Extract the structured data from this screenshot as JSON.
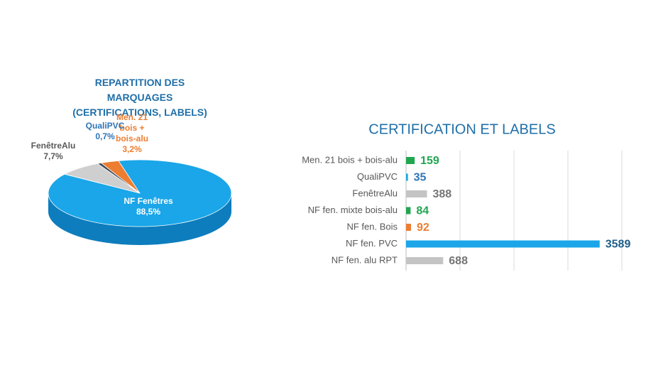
{
  "chart_data": [
    {
      "type": "pie",
      "title": "REPARTITION DES MARQUAGES (CERTIFICATIONS, LABELS)",
      "categories": [
        "Men. 21 bois + bois-alu",
        "NF Fenêtres",
        "FenêtreAlu",
        "QualiPVC"
      ],
      "values": [
        3.2,
        88.5,
        7.7,
        0.7
      ],
      "value_labels": [
        "3,2%",
        "88,5%",
        "7,7%",
        "0,7%"
      ],
      "colors": [
        "#ed7d31",
        "#1aa6e8",
        "#cfcfcf",
        "#3f4a55"
      ],
      "label_colors": [
        "#ed7d31",
        "#ffffff",
        "#595959",
        "#2e75b6"
      ]
    },
    {
      "type": "hbar",
      "title": "CERTIFICATION ET LABELS",
      "categories": [
        "Men. 21 bois + bois-alu",
        "QualiPVC",
        "FenêtreAlu",
        "NF fen. mixte bois-alu",
        "NF fen. Bois",
        "NF fen. PVC",
        "NF fen. alu RPT"
      ],
      "values": [
        159,
        35,
        388,
        84,
        92,
        3589,
        688
      ],
      "colors": [
        "#21a650",
        "#1aa6e8",
        "#c4c4c4",
        "#21a650",
        "#ed7d31",
        "#1aa6e8",
        "#c4c4c4"
      ],
      "label_colors": [
        "#21a650",
        "#2e75b6",
        "#757575",
        "#21a650",
        "#ed7d31",
        "#1f5f8b",
        "#757575"
      ],
      "xlim": [
        0,
        4000
      ],
      "xticks": [
        0,
        1000,
        2000,
        3000,
        4000
      ],
      "grid": true
    }
  ]
}
